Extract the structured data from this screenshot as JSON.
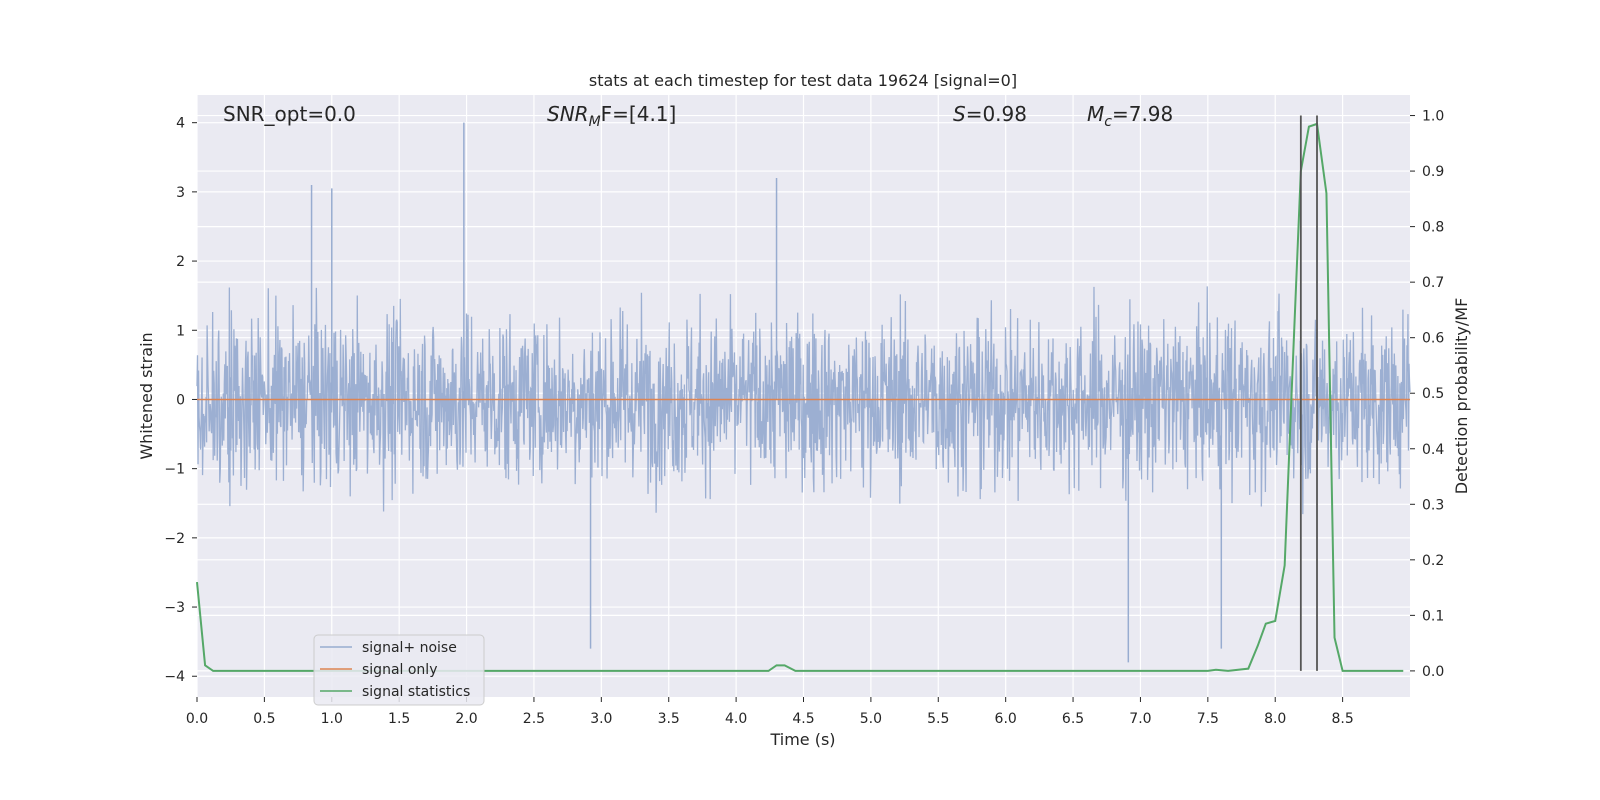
{
  "chart_data": {
    "type": "line",
    "title": "stats at each timestep for test data 19624 [signal=0]",
    "xlabel": "Time (s)",
    "ylabel": "Whitened strain",
    "ylabel_right": "Detection probability/MF",
    "xlim": [
      0.0,
      9.0
    ],
    "ylim": [
      -4.3,
      4.4
    ],
    "ylim_right": [
      -0.047,
      1.037
    ],
    "x_ticks": [
      "0.0",
      "0.5",
      "1.0",
      "1.5",
      "2.0",
      "2.5",
      "3.0",
      "3.5",
      "4.0",
      "4.5",
      "5.0",
      "5.5",
      "6.0",
      "6.5",
      "7.0",
      "7.5",
      "8.0",
      "8.5"
    ],
    "y_ticks": [
      "4",
      "3",
      "2",
      "1",
      "0",
      "−1",
      "−2",
      "−3",
      "−4"
    ],
    "y_ticks_right": [
      "1.0",
      "0.9",
      "0.8",
      "0.7",
      "0.6",
      "0.5",
      "0.4",
      "0.3",
      "0.2",
      "0.1",
      "0.0"
    ],
    "grid": true,
    "legend_position": "lower-left",
    "annotations": {
      "snr_opt": "SNR_opt=0.0",
      "snr_mf_base": "SNR",
      "snr_mf_sub": "M",
      "snr_mf_rest": "F=[4.1]",
      "s_sym": "S",
      "s_val": "=0.98",
      "mc_sym": "M",
      "mc_sub": "c",
      "mc_val": "=7.98"
    },
    "vlines_x": [
      8.19,
      8.31
    ],
    "series": [
      {
        "name": "signal+ noise",
        "color": "#98acd0",
        "description_kind": "noise",
        "x_range": [
          0.0,
          9.0
        ],
        "noise_envelope": [
          -2.5,
          2.5
        ],
        "notable_peaks": [
          {
            "x": 1.98,
            "y": 4.0
          },
          {
            "x": 0.85,
            "y": 3.1
          },
          {
            "x": 1.0,
            "y": 3.05
          },
          {
            "x": 4.3,
            "y": 3.2
          },
          {
            "x": 2.92,
            "y": -3.6
          },
          {
            "x": 6.91,
            "y": -3.8
          },
          {
            "x": 7.6,
            "y": -3.6
          }
        ]
      },
      {
        "name": "signal only",
        "color": "#dd8452",
        "x": [
          0.0,
          9.0
        ],
        "y": [
          0.0,
          0.0
        ]
      },
      {
        "name": "signal statistics",
        "color": "#55a868",
        "axis": "right",
        "x": [
          0.0,
          0.06,
          0.12,
          0.2,
          4.24,
          4.3,
          4.36,
          4.44,
          7.5,
          7.56,
          7.65,
          7.8,
          7.87,
          7.93,
          8.0,
          8.07,
          8.13,
          8.19,
          8.25,
          8.31,
          8.38,
          8.44,
          8.5,
          8.6,
          8.95
        ],
        "y": [
          0.16,
          0.01,
          0.0,
          0.0,
          0.0,
          0.01,
          0.01,
          0.0,
          0.0,
          0.002,
          0.0,
          0.004,
          0.045,
          0.085,
          0.09,
          0.19,
          0.55,
          0.9,
          0.98,
          0.985,
          0.86,
          0.06,
          0.0,
          0.0,
          0.0
        ]
      }
    ]
  }
}
